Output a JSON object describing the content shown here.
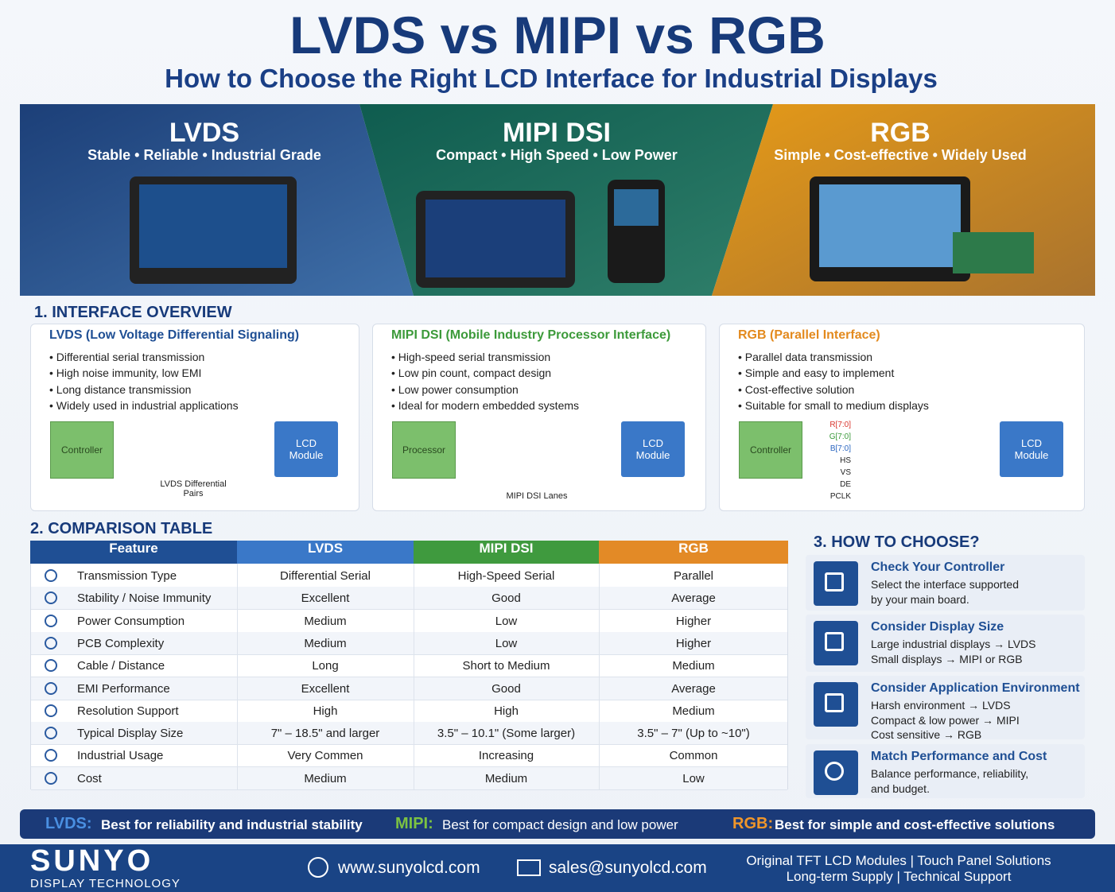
{
  "header": {
    "title": "LVDS vs MIPI vs RGB",
    "subtitle": "How to Choose the Right LCD Interface for Industrial Displays"
  },
  "banners": [
    {
      "title": "LVDS",
      "tagline": "Stable • Reliable • Industrial Grade"
    },
    {
      "title": "MIPI DSI",
      "tagline": "Compact • High Speed • Low Power"
    },
    {
      "title": "RGB",
      "tagline": "Simple • Cost-effective • Widely Used"
    }
  ],
  "overview": {
    "heading": "1. INTERFACE OVERVIEW",
    "cards": [
      {
        "title": "LVDS (Low Voltage Differential Signaling)",
        "bullets": [
          "Differential serial transmission",
          "High noise immunity, low EMI",
          "Long distance transmission",
          "Widely used in industrial applications"
        ],
        "source": "Controller",
        "target": "LCD Module",
        "caption": "LVDS Differential Pairs"
      },
      {
        "title": "MIPI DSI (Mobile Industry Processor Interface)",
        "bullets": [
          "High-speed serial transmission",
          "Low pin count, compact design",
          "Low power consumption",
          "Ideal for modern embedded systems"
        ],
        "source": "Processor",
        "target": "LCD Module",
        "caption": "MIPI DSI Lanes"
      },
      {
        "title": "RGB (Parallel Interface)",
        "bullets": [
          "Parallel data transmission",
          "Simple and easy to implement",
          "Cost-effective solution",
          "Suitable for small to medium displays"
        ],
        "source": "Controller",
        "target": "LCD Module",
        "signals": [
          "R[7:0]",
          "G[7:0]",
          "B[7:0]",
          "HS",
          "VS",
          "DE",
          "PCLK"
        ]
      }
    ]
  },
  "comparison": {
    "heading": "2. COMPARISON TABLE",
    "columns": [
      "Feature",
      "LVDS",
      "MIPI DSI",
      "RGB"
    ],
    "rows": [
      [
        "Transmission Type",
        "Differential Serial",
        "High-Speed Serial",
        "Parallel"
      ],
      [
        "Stability / Noise Immunity",
        "Excellent",
        "Good",
        "Average"
      ],
      [
        "Power Consumption",
        "Medium",
        "Low",
        "Higher"
      ],
      [
        "PCB Complexity",
        "Medium",
        "Low",
        "Higher"
      ],
      [
        "Cable / Distance",
        "Long",
        "Short to Medium",
        "Medium"
      ],
      [
        "EMI Performance",
        "Excellent",
        "Good",
        "Average"
      ],
      [
        "Resolution Support",
        "High",
        "High",
        "Medium"
      ],
      [
        "Typical Display Size",
        "7\" – 18.5\" and larger",
        "3.5\" – 10.1\" (Some larger)",
        "3.5\" – 7\" (Up to ~10\")"
      ],
      [
        "Industrial Usage",
        "Very Commen",
        "Increasing",
        "Common"
      ],
      [
        "Cost",
        "Medium",
        "Medium",
        "Low"
      ]
    ]
  },
  "choose": {
    "heading": "3. HOW TO CHOOSE?",
    "items": [
      {
        "title": "Check Your Controller",
        "lines": [
          "Select the interface supported",
          "by your main board."
        ]
      },
      {
        "title": "Consider Display Size",
        "lines": [
          "Large industrial displays → LVDS",
          "Small displays → MIPI or RGB"
        ]
      },
      {
        "title": "Consider Application Environment",
        "lines": [
          "Harsh environment → LVDS",
          "Compact & low power → MIPI",
          "Cost sensitive → RGB"
        ]
      },
      {
        "title": "Match Performance and Cost",
        "lines": [
          "Balance performance, reliability,",
          "and budget."
        ]
      }
    ]
  },
  "summary": [
    {
      "label": "LVDS:",
      "text": "Best for reliability and industrial stability"
    },
    {
      "label": "MIPI:",
      "text": "Best for compact design and low power"
    },
    {
      "label": "RGB:",
      "text": "Best for simple and cost-effective solutions"
    }
  ],
  "footer": {
    "brand": "SUNYO",
    "brand_sub": "DISPLAY TECHNOLOGY",
    "website": "www.sunyolcd.com",
    "email": "sales@sunyolcd.com",
    "tagline": [
      "Original TFT LCD Modules | Touch Panel Solutions",
      "Long-term Supply | Technical Support"
    ]
  }
}
